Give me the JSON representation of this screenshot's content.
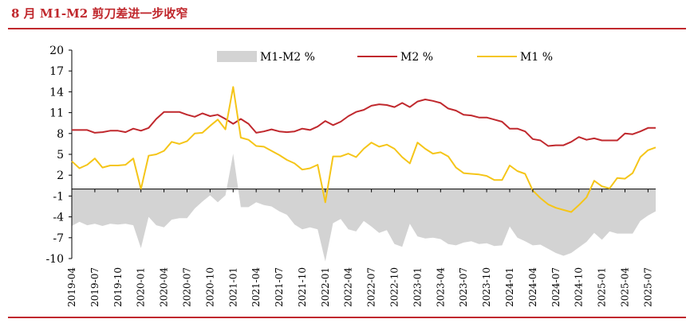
{
  "title": "8 月 M1-M2 剪刀差进一步收窄",
  "colors": {
    "m1m2": "#d3d3d3",
    "m2": "#c0282d",
    "m1": "#f5c518",
    "rule": "#c0282d",
    "text": "#000000"
  },
  "chart_data": {
    "type": "line",
    "title": "8 月 M1-M2 剪刀差进一步收窄",
    "xlabel": "",
    "ylabel": "",
    "ylim": [
      -10,
      20
    ],
    "yticks": [
      20,
      17,
      14,
      11,
      8,
      5,
      2,
      -1,
      -4,
      -7,
      -10
    ],
    "grid": false,
    "legend": "top",
    "x": [
      "2019-04",
      "2019-05",
      "2019-06",
      "2019-07",
      "2019-08",
      "2019-09",
      "2019-10",
      "2019-11",
      "2019-12",
      "2020-01",
      "2020-02",
      "2020-03",
      "2020-04",
      "2020-05",
      "2020-06",
      "2020-07",
      "2020-08",
      "2020-09",
      "2020-10",
      "2020-11",
      "2020-12",
      "2021-01",
      "2021-02",
      "2021-03",
      "2021-04",
      "2021-05",
      "2021-06",
      "2021-07",
      "2021-08",
      "2021-09",
      "2021-10",
      "2021-11",
      "2021-12",
      "2022-01",
      "2022-02",
      "2022-03",
      "2022-04",
      "2022-05",
      "2022-06",
      "2022-07",
      "2022-08",
      "2022-09",
      "2022-10",
      "2022-11",
      "2022-12",
      "2023-01",
      "2023-02",
      "2023-03",
      "2023-04",
      "2023-05",
      "2023-06",
      "2023-07",
      "2023-08",
      "2023-09",
      "2023-10",
      "2023-11",
      "2023-12",
      "2024-01",
      "2024-02",
      "2024-03",
      "2024-04",
      "2024-05",
      "2024-06",
      "2024-07",
      "2024-08",
      "2024-09",
      "2024-10",
      "2024-11",
      "2024-12",
      "2025-01",
      "2025-02",
      "2025-03",
      "2025-04",
      "2025-05",
      "2025-06",
      "2025-07",
      "2025-08"
    ],
    "xtick_labels": [
      "2019-04",
      "2019-07",
      "2019-10",
      "2020-01",
      "2020-04",
      "2020-07",
      "2020-10",
      "2021-01",
      "2021-04",
      "2021-07",
      "2021-10",
      "2022-01",
      "2022-04",
      "2022-07",
      "2022-10",
      "2023-01",
      "2023-04",
      "2023-07",
      "2023-10",
      "2024-01",
      "2024-04",
      "2024-07",
      "2024-10",
      "2025-01",
      "2025-04",
      "2025-07"
    ],
    "series": [
      {
        "name": "M1-M2 %",
        "kind": "area",
        "values": [
          -5.3,
          -4.7,
          -5.2,
          -5.0,
          -5.3,
          -5.0,
          -5.1,
          -5.0,
          -5.2,
          -8.5,
          -4.0,
          -5.2,
          -5.5,
          -4.4,
          -4.2,
          -4.2,
          -2.8,
          -1.8,
          -0.9,
          -1.9,
          -0.9,
          5.1,
          -2.6,
          -2.6,
          -1.9,
          -2.3,
          -2.5,
          -3.2,
          -3.7,
          -5.1,
          -5.8,
          -5.5,
          -5.8,
          -10.4,
          -4.9,
          -4.3,
          -5.8,
          -6.1,
          -4.6,
          -5.4,
          -6.3,
          -5.9,
          -7.9,
          -8.3,
          -5.0,
          -6.8,
          -7.1,
          -7.0,
          -7.2,
          -7.9,
          -8.1,
          -7.7,
          -7.5,
          -7.9,
          -7.8,
          -8.2,
          -8.1,
          -5.4,
          -7.0,
          -7.5,
          -8.1,
          -8.0,
          -8.6,
          -9.2,
          -9.6,
          -9.2,
          -8.4,
          -7.6,
          -6.3,
          -7.3,
          -6.1,
          -6.4,
          -6.4,
          -6.4,
          -4.6,
          -3.8,
          -3.2
        ]
      },
      {
        "name": "M2 %",
        "kind": "line",
        "values": [
          8.5,
          8.5,
          8.5,
          8.1,
          8.2,
          8.4,
          8.4,
          8.2,
          8.7,
          8.4,
          8.8,
          10.1,
          11.1,
          11.1,
          11.1,
          10.7,
          10.4,
          10.9,
          10.5,
          10.7,
          10.1,
          9.4,
          10.1,
          9.4,
          8.1,
          8.3,
          8.6,
          8.3,
          8.2,
          8.3,
          8.7,
          8.5,
          9.0,
          9.8,
          9.2,
          9.7,
          10.5,
          11.1,
          11.4,
          12.0,
          12.2,
          12.1,
          11.8,
          12.4,
          11.8,
          12.6,
          12.9,
          12.7,
          12.4,
          11.6,
          11.3,
          10.7,
          10.6,
          10.3,
          10.3,
          10.0,
          9.7,
          8.7,
          8.7,
          8.3,
          7.2,
          7.0,
          6.2,
          6.3,
          6.3,
          6.8,
          7.5,
          7.1,
          7.3,
          7.0,
          7.0,
          7.0,
          8.0,
          7.9,
          8.3,
          8.8,
          8.8
        ]
      },
      {
        "name": "M1 %",
        "kind": "line",
        "values": [
          4.0,
          3.0,
          3.5,
          4.4,
          3.1,
          3.4,
          3.4,
          3.5,
          4.4,
          0.0,
          4.8,
          5.0,
          5.5,
          6.8,
          6.5,
          6.9,
          8.0,
          8.1,
          9.1,
          10.0,
          8.6,
          14.7,
          7.4,
          7.1,
          6.2,
          6.1,
          5.5,
          4.9,
          4.2,
          3.7,
          2.8,
          3.0,
          3.5,
          -1.9,
          4.7,
          4.7,
          5.1,
          4.6,
          5.8,
          6.7,
          6.1,
          6.4,
          5.8,
          4.6,
          3.7,
          6.7,
          5.8,
          5.1,
          5.3,
          4.7,
          3.1,
          2.3,
          2.2,
          2.1,
          1.9,
          1.3,
          1.3,
          3.4,
          2.6,
          2.2,
          -0.2,
          -1.3,
          -2.2,
          -2.7,
          -3.0,
          -3.3,
          -2.3,
          -1.2,
          1.2,
          0.4,
          0.1,
          1.6,
          1.5,
          2.3,
          4.6,
          5.6,
          6.0
        ]
      }
    ]
  }
}
